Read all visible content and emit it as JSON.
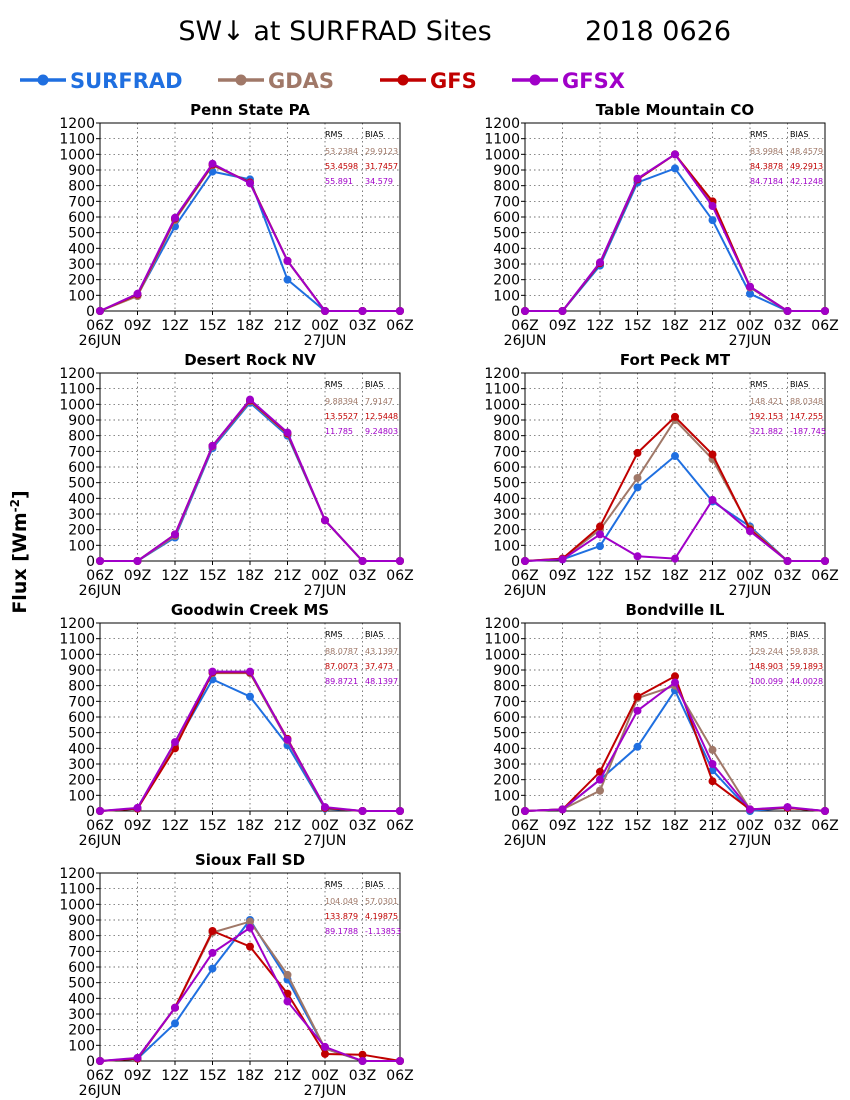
{
  "page": {
    "title_left": "SW↓ at SURFRAD Sites",
    "title_right": "2018 0626",
    "ylabel_main": "Flux [Wm",
    "ylabel_sup": "-2",
    "ylabel_close": "]"
  },
  "legend": [
    {
      "name": "SURFRAD",
      "color": "#1f6fe0"
    },
    {
      "name": "GDAS",
      "color": "#a07868"
    },
    {
      "name": "GFS",
      "color": "#c00000"
    },
    {
      "name": "GFSX",
      "color": "#a000c8"
    }
  ],
  "stats_header": {
    "rms": "RMS",
    "bias": "BIAS"
  },
  "chart_data": [
    {
      "type": "line",
      "title": "Penn State PA",
      "x": [
        "06Z",
        "09Z",
        "12Z",
        "15Z",
        "18Z",
        "21Z",
        "00Z",
        "03Z",
        "06Z"
      ],
      "date_labels": [
        {
          "at": 0,
          "text": "26JUN"
        },
        {
          "at": 6,
          "text": "27JUN"
        }
      ],
      "ylim": [
        0,
        1200
      ],
      "yticks": [
        0,
        100,
        200,
        300,
        400,
        500,
        600,
        700,
        800,
        900,
        1000,
        1100,
        1200
      ],
      "grid": true,
      "series": [
        {
          "name": "SURFRAD",
          "values": [
            0,
            100,
            540,
            890,
            840,
            200,
            0,
            0,
            0
          ]
        },
        {
          "name": "GDAS",
          "values": [
            0,
            95,
            580,
            930,
            820,
            320,
            0,
            0,
            0
          ]
        },
        {
          "name": "GFS",
          "values": [
            0,
            105,
            590,
            935,
            820,
            320,
            0,
            0,
            0
          ]
        },
        {
          "name": "GFSX",
          "values": [
            0,
            110,
            595,
            940,
            815,
            320,
            0,
            0,
            0
          ]
        }
      ],
      "stats": [
        {
          "rms": "53.2384",
          "bias": "29.9123"
        },
        {
          "rms": "53.4598",
          "bias": "31.7457"
        },
        {
          "rms": "55.891",
          "bias": "34.579"
        }
      ]
    },
    {
      "type": "line",
      "title": "Table Mountain CO",
      "x": [
        "06Z",
        "09Z",
        "12Z",
        "15Z",
        "18Z",
        "21Z",
        "00Z",
        "03Z",
        "06Z"
      ],
      "date_labels": [
        {
          "at": 0,
          "text": "26JUN"
        },
        {
          "at": 6,
          "text": "27JUN"
        }
      ],
      "ylim": [
        0,
        1200
      ],
      "yticks": [
        0,
        100,
        200,
        300,
        400,
        500,
        600,
        700,
        800,
        900,
        1000,
        1100,
        1200
      ],
      "grid": true,
      "series": [
        {
          "name": "SURFRAD",
          "values": [
            0,
            0,
            290,
            820,
            910,
            580,
            110,
            0,
            0
          ]
        },
        {
          "name": "GDAS",
          "values": [
            0,
            0,
            305,
            840,
            1000,
            690,
            150,
            0,
            0
          ]
        },
        {
          "name": "GFS",
          "values": [
            0,
            0,
            305,
            840,
            1000,
            700,
            155,
            0,
            0
          ]
        },
        {
          "name": "GFSX",
          "values": [
            0,
            0,
            310,
            845,
            1000,
            670,
            155,
            0,
            0
          ]
        }
      ],
      "stats": [
        {
          "rms": "83.9984",
          "bias": "48.4579"
        },
        {
          "rms": "84.3878",
          "bias": "49.2913"
        },
        {
          "rms": "84.7184",
          "bias": "42.1248"
        }
      ]
    },
    {
      "type": "line",
      "title": "Desert Rock NV",
      "x": [
        "06Z",
        "09Z",
        "12Z",
        "15Z",
        "18Z",
        "21Z",
        "00Z",
        "03Z",
        "06Z"
      ],
      "date_labels": [
        {
          "at": 0,
          "text": "26JUN"
        },
        {
          "at": 6,
          "text": "27JUN"
        }
      ],
      "ylim": [
        0,
        1200
      ],
      "yticks": [
        0,
        100,
        200,
        300,
        400,
        500,
        600,
        700,
        800,
        900,
        1000,
        1100,
        1200
      ],
      "grid": true,
      "series": [
        {
          "name": "SURFRAD",
          "values": [
            0,
            0,
            150,
            720,
            1010,
            800,
            260,
            0,
            0
          ]
        },
        {
          "name": "GDAS",
          "values": [
            0,
            0,
            160,
            730,
            1020,
            810,
            260,
            0,
            0
          ]
        },
        {
          "name": "GFS",
          "values": [
            0,
            0,
            170,
            735,
            1025,
            815,
            260,
            0,
            0
          ]
        },
        {
          "name": "GFSX",
          "values": [
            0,
            0,
            170,
            735,
            1030,
            820,
            260,
            0,
            0
          ]
        }
      ],
      "stats": [
        {
          "rms": "9.88394",
          "bias": "7.9147"
        },
        {
          "rms": "13.5527",
          "bias": "12.5448"
        },
        {
          "rms": "11.785",
          "bias": "9.24803"
        }
      ]
    },
    {
      "type": "line",
      "title": "Fort Peck MT",
      "x": [
        "06Z",
        "09Z",
        "12Z",
        "15Z",
        "18Z",
        "21Z",
        "00Z",
        "03Z",
        "06Z"
      ],
      "date_labels": [
        {
          "at": 0,
          "text": "26JUN"
        },
        {
          "at": 6,
          "text": "27JUN"
        }
      ],
      "ylim": [
        0,
        1200
      ],
      "yticks": [
        0,
        100,
        200,
        300,
        400,
        500,
        600,
        700,
        800,
        900,
        1000,
        1100,
        1200
      ],
      "grid": true,
      "series": [
        {
          "name": "SURFRAD",
          "values": [
            0,
            10,
            95,
            470,
            670,
            380,
            220,
            0,
            0
          ]
        },
        {
          "name": "GDAS",
          "values": [
            0,
            15,
            200,
            530,
            900,
            650,
            210,
            0,
            0
          ]
        },
        {
          "name": "GFS",
          "values": [
            0,
            15,
            220,
            690,
            920,
            680,
            200,
            0,
            0
          ]
        },
        {
          "name": "GFSX",
          "values": [
            0,
            10,
            170,
            30,
            15,
            390,
            190,
            0,
            0
          ]
        }
      ],
      "stats": [
        {
          "rms": "148.421",
          "bias": "88.0348"
        },
        {
          "rms": "192.153",
          "bias": "147.255"
        },
        {
          "rms": "321.882",
          "bias": "-187.745"
        }
      ]
    },
    {
      "type": "line",
      "title": "Goodwin Creek MS",
      "x": [
        "06Z",
        "09Z",
        "12Z",
        "15Z",
        "18Z",
        "21Z",
        "00Z",
        "03Z",
        "06Z"
      ],
      "date_labels": [
        {
          "at": 0,
          "text": "26JUN"
        },
        {
          "at": 6,
          "text": "27JUN"
        }
      ],
      "ylim": [
        0,
        1200
      ],
      "yticks": [
        0,
        100,
        200,
        300,
        400,
        500,
        600,
        700,
        800,
        900,
        1000,
        1100,
        1200
      ],
      "grid": true,
      "series": [
        {
          "name": "SURFRAD",
          "values": [
            0,
            15,
            420,
            840,
            730,
            420,
            15,
            0,
            0
          ]
        },
        {
          "name": "GDAS",
          "values": [
            0,
            15,
            420,
            880,
            880,
            450,
            20,
            0,
            0
          ]
        },
        {
          "name": "GFS",
          "values": [
            0,
            15,
            400,
            885,
            885,
            460,
            20,
            0,
            0
          ]
        },
        {
          "name": "GFSX",
          "values": [
            0,
            20,
            440,
            890,
            890,
            455,
            25,
            0,
            0
          ]
        }
      ],
      "stats": [
        {
          "rms": "88.0787",
          "bias": "43.1397"
        },
        {
          "rms": "87.0073",
          "bias": "37.473"
        },
        {
          "rms": "89.8721",
          "bias": "48.1397"
        }
      ]
    },
    {
      "type": "line",
      "title": "Bondville IL",
      "x": [
        "06Z",
        "09Z",
        "12Z",
        "15Z",
        "18Z",
        "21Z",
        "00Z",
        "03Z",
        "06Z"
      ],
      "date_labels": [
        {
          "at": 0,
          "text": "26JUN"
        },
        {
          "at": 6,
          "text": "27JUN"
        }
      ],
      "ylim": [
        0,
        1200
      ],
      "yticks": [
        0,
        100,
        200,
        300,
        400,
        500,
        600,
        700,
        800,
        900,
        1000,
        1100,
        1200
      ],
      "grid": true,
      "series": [
        {
          "name": "SURFRAD",
          "values": [
            0,
            10,
            200,
            410,
            770,
            260,
            0,
            20,
            0
          ]
        },
        {
          "name": "GDAS",
          "values": [
            0,
            10,
            130,
            720,
            800,
            390,
            10,
            20,
            0
          ]
        },
        {
          "name": "GFS",
          "values": [
            0,
            10,
            250,
            730,
            860,
            190,
            10,
            20,
            0
          ]
        },
        {
          "name": "GFSX",
          "values": [
            0,
            10,
            200,
            640,
            820,
            300,
            10,
            25,
            0
          ]
        }
      ],
      "stats": [
        {
          "rms": "129.244",
          "bias": "59.838"
        },
        {
          "rms": "148.903",
          "bias": "59.1893"
        },
        {
          "rms": "100.099",
          "bias": "44.0028"
        }
      ]
    },
    {
      "type": "line",
      "title": "Sioux Fall SD",
      "x": [
        "06Z",
        "09Z",
        "12Z",
        "15Z",
        "18Z",
        "21Z",
        "00Z",
        "03Z",
        "06Z"
      ],
      "date_labels": [
        {
          "at": 0,
          "text": "26JUN"
        },
        {
          "at": 6,
          "text": "27JUN"
        }
      ],
      "ylim": [
        0,
        1200
      ],
      "yticks": [
        0,
        100,
        200,
        300,
        400,
        500,
        600,
        700,
        800,
        900,
        1000,
        1100,
        1200
      ],
      "grid": true,
      "series": [
        {
          "name": "SURFRAD",
          "values": [
            0,
            15,
            240,
            590,
            900,
            520,
            80,
            0,
            0
          ]
        },
        {
          "name": "GDAS",
          "values": [
            0,
            15,
            340,
            820,
            890,
            550,
            80,
            0,
            0
          ]
        },
        {
          "name": "GFS",
          "values": [
            0,
            15,
            340,
            830,
            730,
            430,
            45,
            40,
            0
          ]
        },
        {
          "name": "GFSX",
          "values": [
            0,
            20,
            340,
            690,
            850,
            380,
            90,
            0,
            0
          ]
        }
      ],
      "stats": [
        {
          "rms": "104.049",
          "bias": "57.0301"
        },
        {
          "rms": "133.879",
          "bias": "4.19875"
        },
        {
          "rms": "89.1788",
          "bias": "-1.13853"
        }
      ]
    }
  ]
}
